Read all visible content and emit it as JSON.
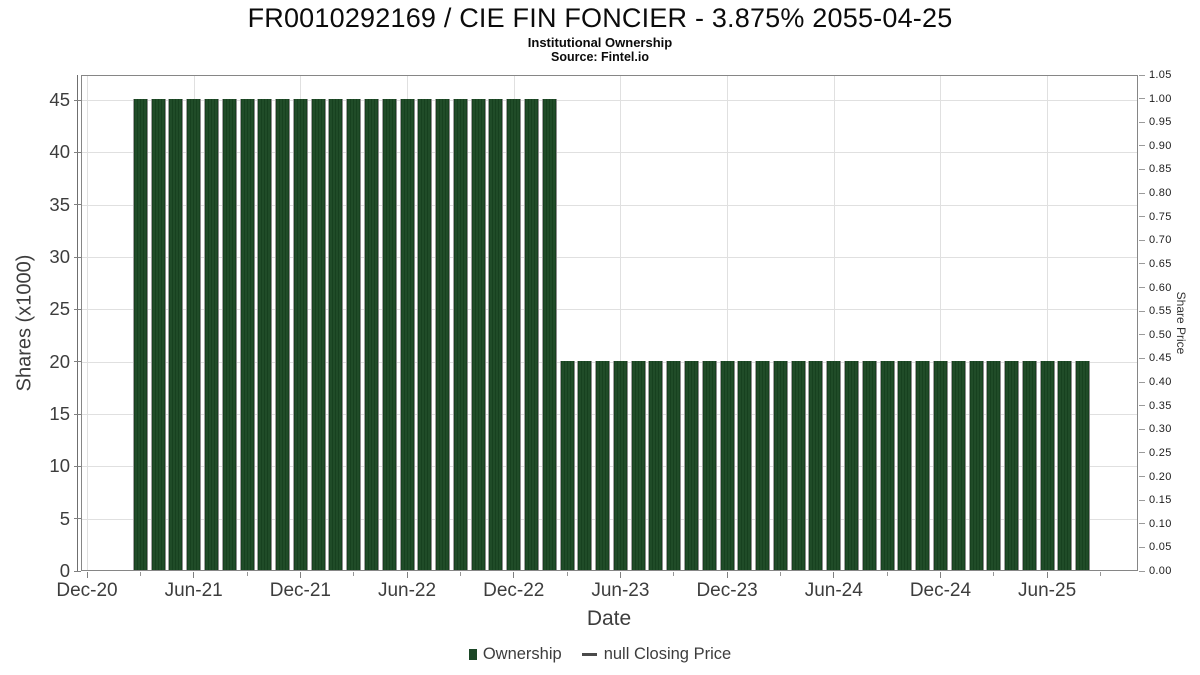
{
  "chart_data": {
    "type": "bar",
    "title": "FR0010292169 / CIE FIN FONCIER - 3.875% 2055-04-25",
    "subtitle": "Institutional Ownership",
    "source": "Source: Fintel.io",
    "xlabel": "Date",
    "ylabel_left": "Shares (x1000)",
    "ylabel_right": "Share Price",
    "grid": true,
    "legend_position": "bottom",
    "bar_color": "#1c4727",
    "ylim_left": [
      0,
      47.4
    ],
    "ylim_right": [
      0,
      1.05
    ],
    "y_ticks_left": [
      0,
      5,
      10,
      15,
      20,
      25,
      30,
      35,
      40,
      45
    ],
    "y_ticks_right": [
      "0.00",
      "0.05",
      "0.10",
      "0.15",
      "0.20",
      "0.25",
      "0.30",
      "0.35",
      "0.40",
      "0.45",
      "0.50",
      "0.55",
      "0.60",
      "0.65",
      "0.70",
      "0.75",
      "0.80",
      "0.85",
      "0.90",
      "0.95",
      "1.00",
      "1.05"
    ],
    "x_tick_labels": [
      "Dec-20",
      "Jun-21",
      "Dec-21",
      "Jun-22",
      "Dec-22",
      "Jun-23",
      "Dec-23",
      "Jun-24",
      "Dec-24",
      "Jun-25"
    ],
    "categories": [
      "Mar-21",
      "Apr-21",
      "May-21",
      "Jun-21",
      "Jul-21",
      "Aug-21",
      "Sep-21",
      "Oct-21",
      "Nov-21",
      "Dec-21",
      "Jan-22",
      "Feb-22",
      "Mar-22",
      "Apr-22",
      "May-22",
      "Jun-22",
      "Jul-22",
      "Aug-22",
      "Sep-22",
      "Oct-22",
      "Nov-22",
      "Dec-22",
      "Jan-23",
      "Feb-23",
      "Mar-23",
      "Apr-23",
      "May-23",
      "Jun-23",
      "Jul-23",
      "Aug-23",
      "Sep-23",
      "Oct-23",
      "Nov-23",
      "Dec-23",
      "Jan-24",
      "Feb-24",
      "Mar-24",
      "Apr-24",
      "May-24",
      "Jun-24",
      "Jul-24",
      "Aug-24",
      "Sep-24",
      "Oct-24",
      "Nov-24",
      "Dec-24",
      "Jan-25",
      "Feb-25",
      "Mar-25",
      "Apr-25",
      "May-25",
      "Jun-25",
      "Jul-25",
      "Aug-25"
    ],
    "series": [
      {
        "name": "Ownership",
        "type": "bar",
        "color": "#1c4727",
        "values": [
          45,
          45,
          45,
          45,
          45,
          45,
          45,
          45,
          45,
          45,
          45,
          45,
          45,
          45,
          45,
          45,
          45,
          45,
          45,
          45,
          45,
          45,
          45,
          45,
          20,
          20,
          20,
          20,
          20,
          20,
          20,
          20,
          20,
          20,
          20,
          20,
          20,
          20,
          20,
          20,
          20,
          20,
          20,
          20,
          20,
          20,
          20,
          20,
          20,
          20,
          20,
          20,
          20,
          20
        ]
      },
      {
        "name": "null Closing Price",
        "type": "line",
        "color": "#4a4a4a",
        "values": []
      }
    ]
  }
}
